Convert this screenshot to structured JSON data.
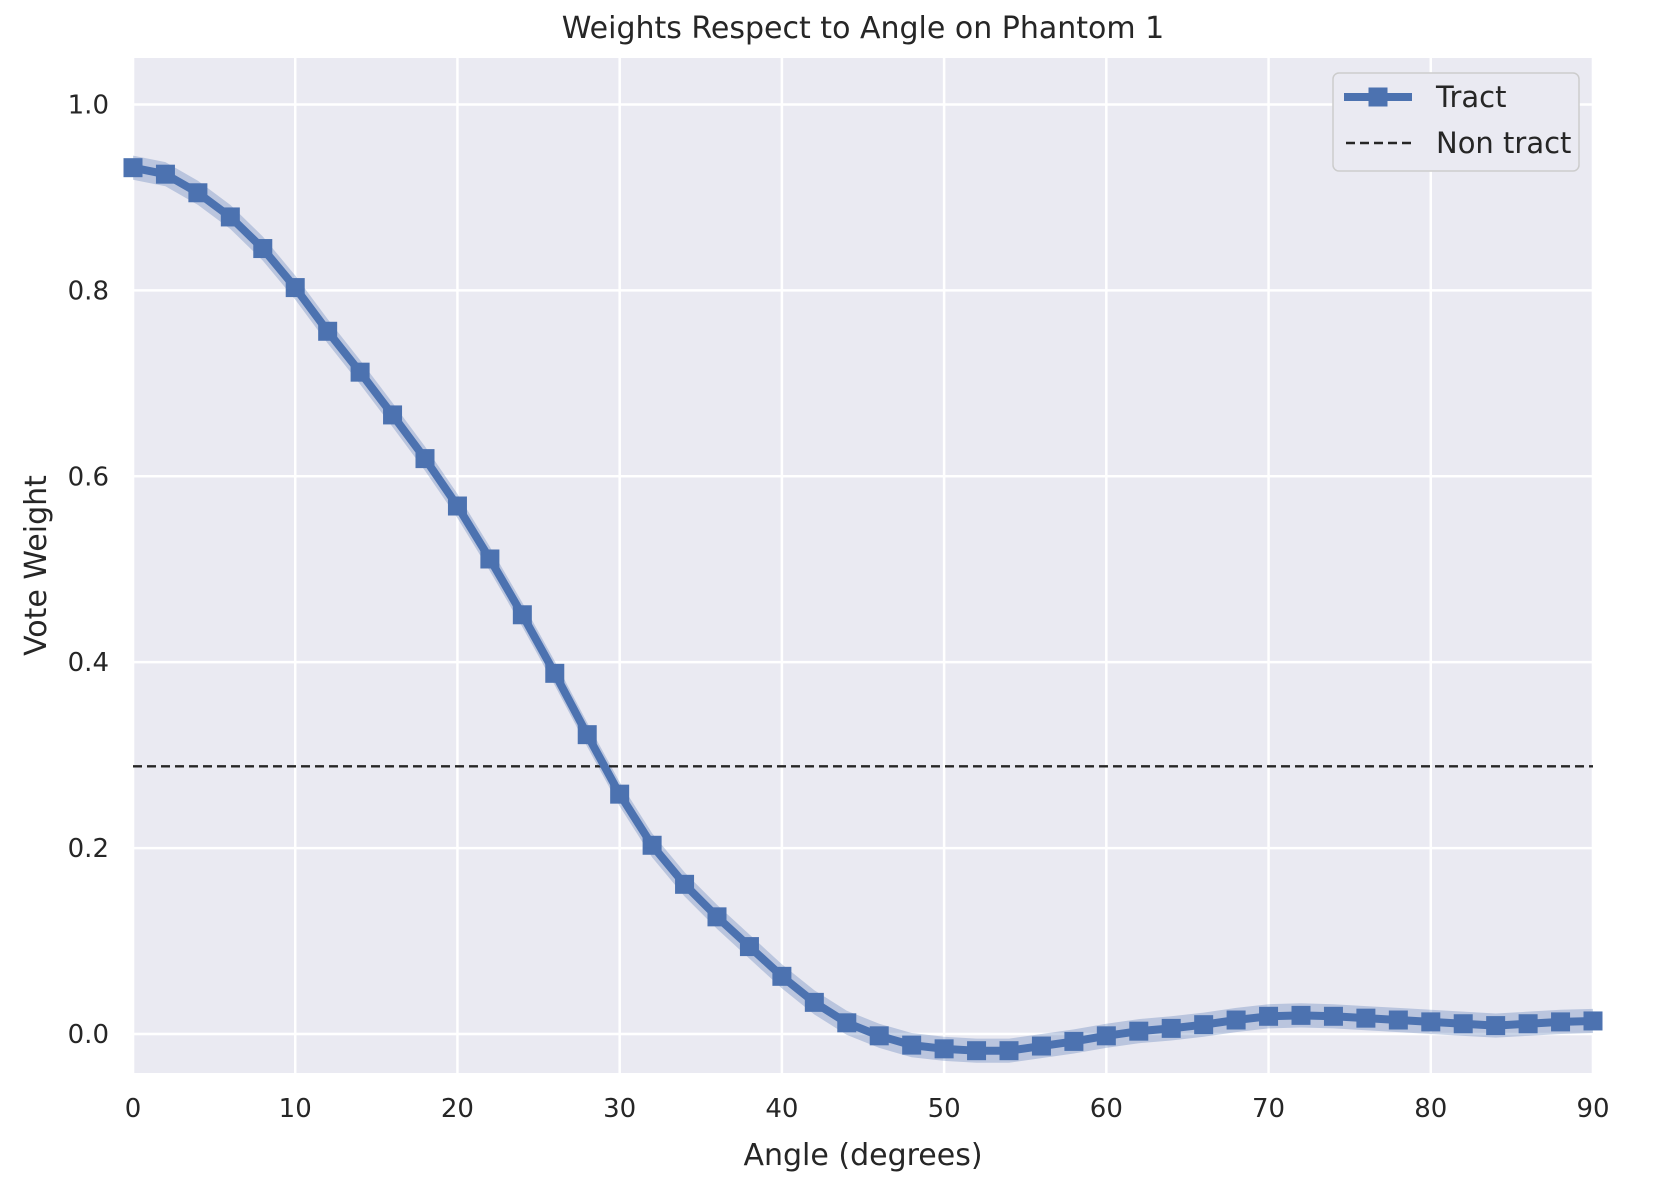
{
  "chart_data": {
    "type": "line",
    "title": "Weights Respect to Angle on Phantom 1",
    "xlabel": "Angle (degrees)",
    "ylabel": "Vote Weight",
    "xlim": [
      0,
      90
    ],
    "ylim": [
      -0.042,
      1.05
    ],
    "xticks": [
      0,
      10,
      20,
      30,
      40,
      50,
      60,
      70,
      80,
      90
    ],
    "xtick_labels": [
      "0",
      "10",
      "20",
      "30",
      "40",
      "50",
      "60",
      "70",
      "80",
      "90"
    ],
    "yticks": [
      0.0,
      0.2,
      0.4,
      0.6,
      0.8,
      1.0
    ],
    "ytick_labels": [
      "0.0",
      "0.2",
      "0.4",
      "0.6",
      "0.8",
      "1.0"
    ],
    "grid": true,
    "legend_position": "top-right",
    "series": [
      {
        "name": "Tract",
        "style": "solid line with square markers and shaded confidence band",
        "color": "#4c72b0",
        "band_halfwidth": 0.013,
        "x": [
          0,
          2,
          4,
          6,
          8,
          10,
          12,
          14,
          16,
          18,
          20,
          22,
          24,
          26,
          28,
          30,
          32,
          34,
          36,
          38,
          40,
          42,
          44,
          46,
          48,
          50,
          52,
          54,
          56,
          58,
          60,
          62,
          64,
          66,
          68,
          70,
          72,
          74,
          76,
          78,
          80,
          82,
          84,
          86,
          88,
          90
        ],
        "y": [
          0.932,
          0.925,
          0.905,
          0.879,
          0.845,
          0.803,
          0.756,
          0.712,
          0.666,
          0.619,
          0.568,
          0.511,
          0.451,
          0.388,
          0.322,
          0.258,
          0.203,
          0.161,
          0.126,
          0.094,
          0.062,
          0.034,
          0.012,
          -0.002,
          -0.012,
          -0.016,
          -0.018,
          -0.018,
          -0.013,
          -0.008,
          -0.002,
          0.003,
          0.006,
          0.01,
          0.015,
          0.019,
          0.02,
          0.019,
          0.017,
          0.015,
          0.013,
          0.011,
          0.009,
          0.011,
          0.013,
          0.014
        ]
      },
      {
        "name": "Non tract",
        "style": "dashed horizontal line",
        "color": "#262626",
        "x": [
          0,
          90
        ],
        "y": [
          0.288,
          0.288
        ]
      }
    ]
  }
}
